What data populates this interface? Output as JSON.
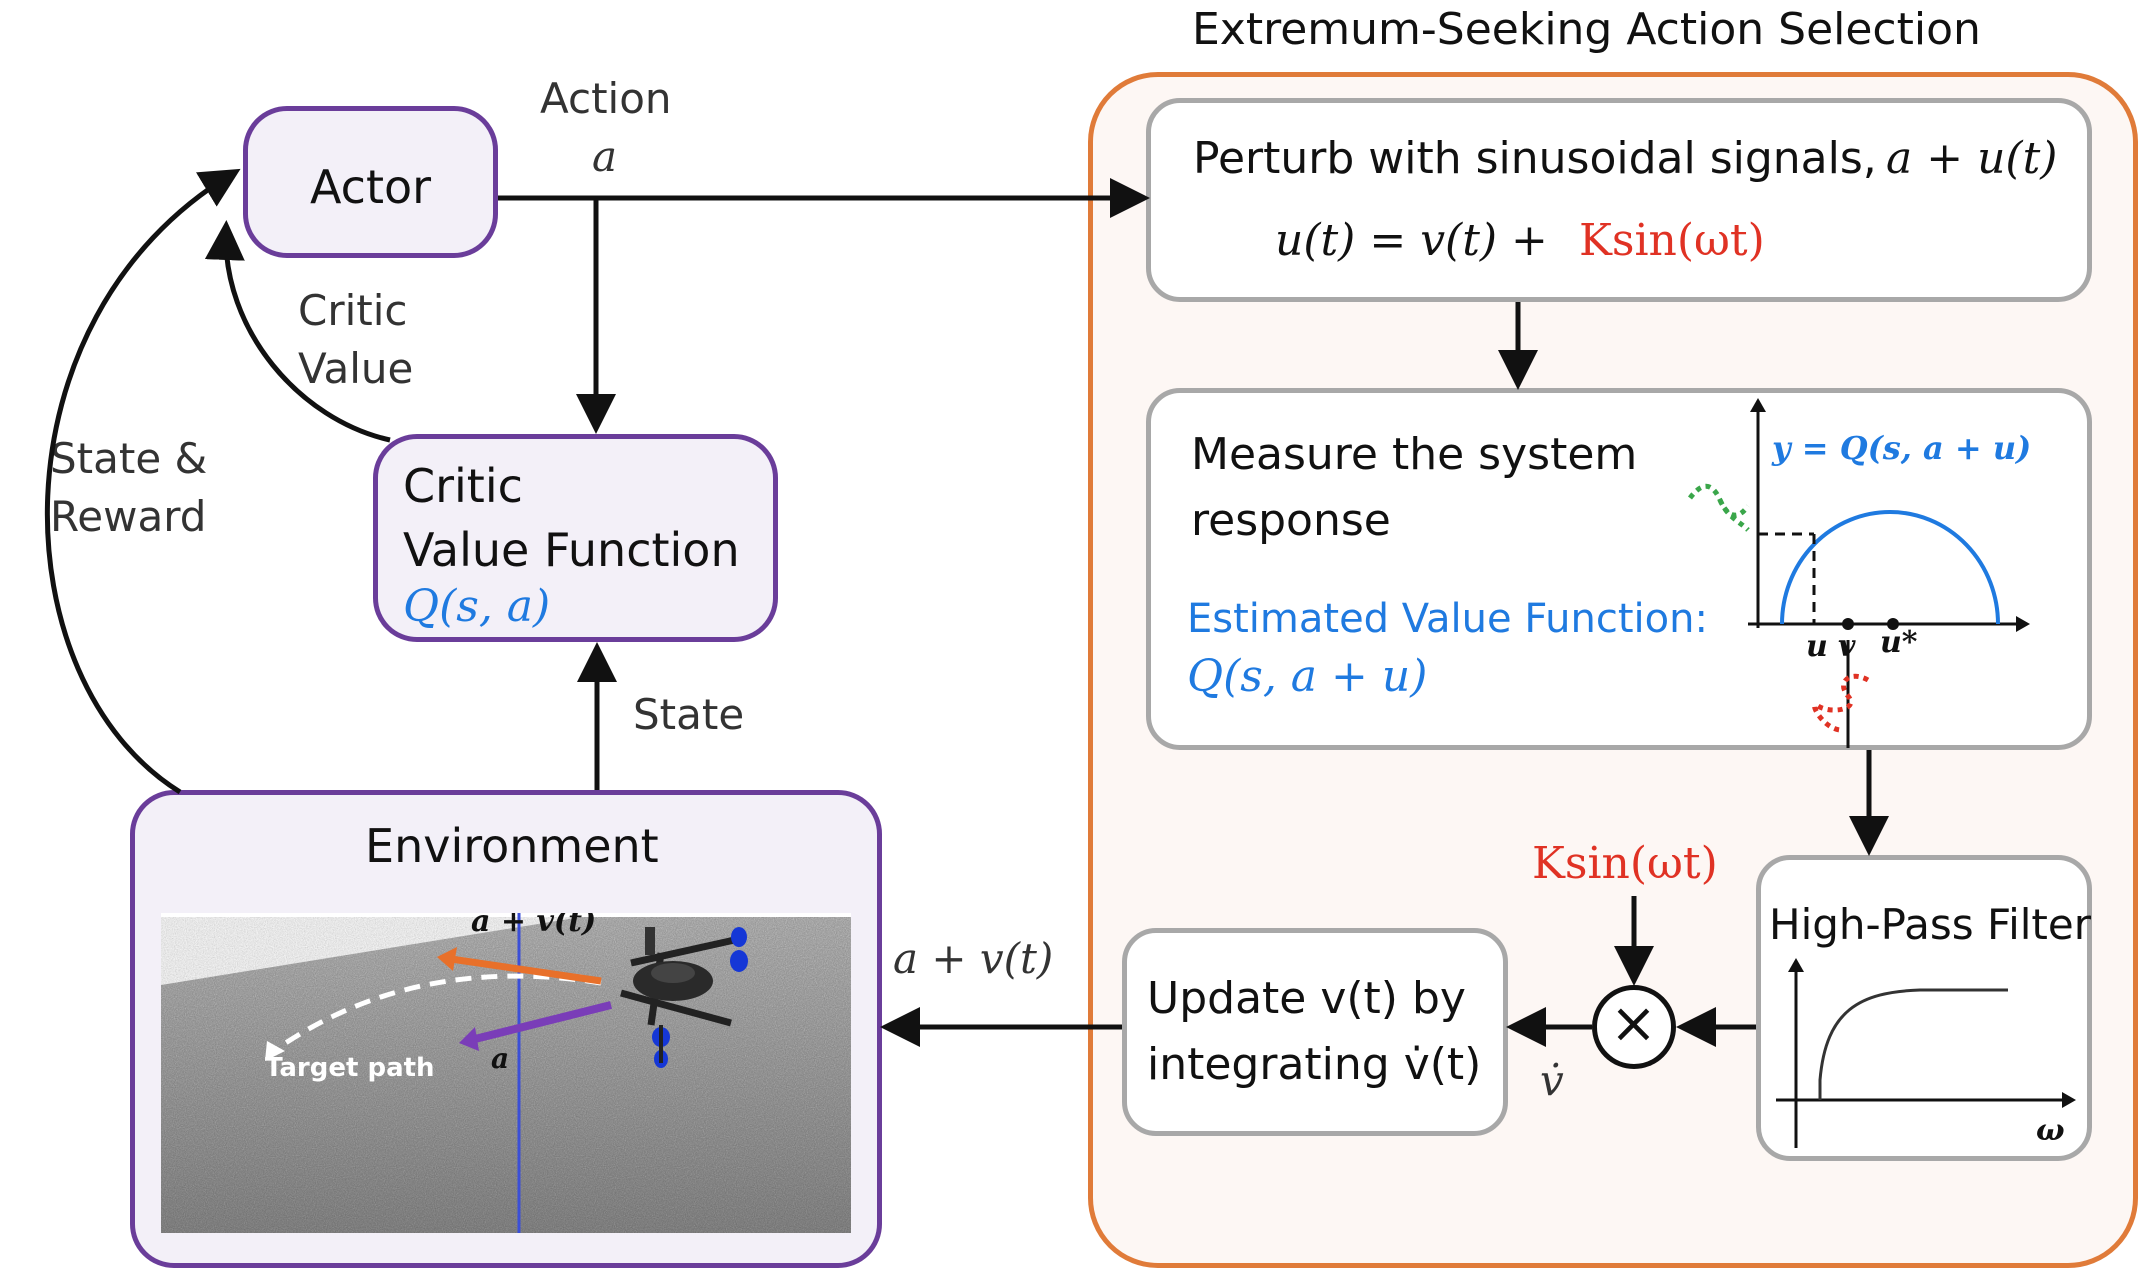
{
  "title": "Extremum-Seeking Action Selection",
  "actor": {
    "label": "Actor"
  },
  "action_label": {
    "word": "Action",
    "symbol": "a"
  },
  "critic_value_label": {
    "line1": "Critic",
    "line2": "Value"
  },
  "state_reward_label": {
    "line1": "State &",
    "line2": "Reward"
  },
  "critic": {
    "line1": "Critic",
    "line2": "Value Function",
    "formula": "Q(s, a)"
  },
  "state_label": "State",
  "environment": {
    "label": "Environment",
    "action_perturbed": "a + v(t)",
    "action": "a",
    "target_path": "Target path"
  },
  "env_input_label": "a + v(t)",
  "perturb": {
    "text": "Perturb with sinusoidal signals,",
    "expr": "a + u(t)",
    "eq_left": "u(t) = v(t) + ",
    "eq_right": "Ksin(ωt)"
  },
  "measure": {
    "line1": "Measure the system",
    "line2": "response",
    "est_label": "Estimated Value Function:",
    "est_formula": "Q(s, a + u)",
    "plot_label": "y = Q(s, a + u)",
    "tick_u": "u",
    "tick_v": "v",
    "tick_ustar": "u*"
  },
  "hpf": {
    "label": "High-Pass Filter",
    "axis": "ω"
  },
  "ksin_label": "Ksin(ωt)",
  "multiply_symbol": "×",
  "vdot_label": "v̇",
  "update": {
    "line1": "Update v(t) by",
    "line2": "integrating v̇(t)"
  },
  "colors": {
    "purple": "#6a3d9a",
    "orange_border": "#e07b39",
    "panel_bg": "#fdf7f4",
    "gray_border": "#a8a8a8",
    "blue": "#1f7ae0",
    "red": "#e03224",
    "green": "#3aa64a"
  }
}
